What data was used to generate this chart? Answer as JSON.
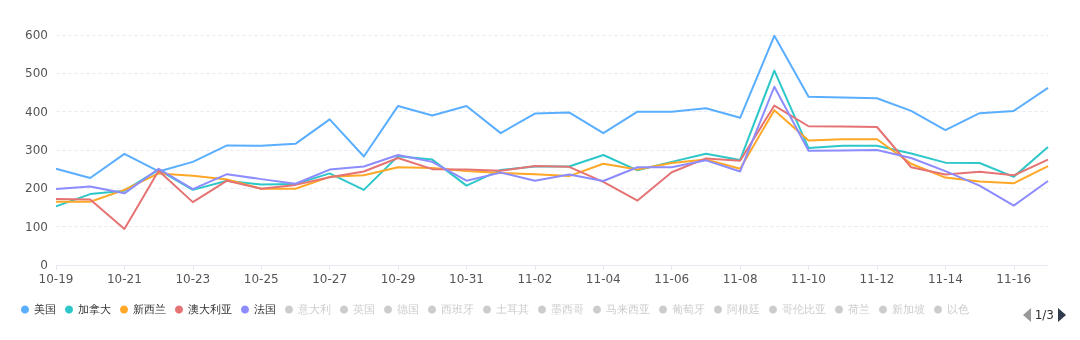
{
  "chart_data": {
    "type": "line",
    "categories": [
      "10-19",
      null,
      "10-21",
      null,
      "10-23",
      null,
      "10-25",
      null,
      "10-27",
      null,
      "10-29",
      null,
      "10-31",
      null,
      "11-02",
      null,
      "11-04",
      null,
      "11-06",
      null,
      "11-08",
      null,
      "11-10",
      null,
      "11-12",
      null,
      "11-14",
      null,
      "11-16",
      null
    ],
    "ylim": [
      0,
      600
    ],
    "yticks": [
      0,
      100,
      200,
      300,
      400,
      500,
      600
    ],
    "grid": "y",
    "legend": "bottom",
    "marker": "none",
    "line_style": "solid",
    "annotations": [
      "1/3"
    ],
    "series": [
      {
        "name": "美国",
        "color": "#5aaeff",
        "values": [
          251,
          227,
          290,
          244,
          269,
          312,
          311,
          316,
          380,
          283,
          415,
          390,
          415,
          344,
          395,
          398,
          344,
          400,
          400,
          409,
          384,
          598,
          439,
          437,
          435,
          402,
          352,
          396,
          402,
          462
        ]
      },
      {
        "name": "加拿大",
        "color": "#2ec7c9",
        "values": [
          153,
          185,
          194,
          248,
          196,
          220,
          210,
          211,
          239,
          196,
          284,
          275,
          207,
          248,
          257,
          257,
          287,
          247,
          269,
          290,
          274,
          507,
          305,
          311,
          311,
          291,
          267,
          266,
          230,
          308
        ]
      },
      {
        "name": "新西兰",
        "color": "#ffa726",
        "values": [
          165,
          165,
          196,
          239,
          233,
          223,
          199,
          199,
          230,
          234,
          255,
          253,
          245,
          240,
          237,
          232,
          264,
          249,
          266,
          275,
          251,
          404,
          325,
          328,
          328,
          264,
          228,
          218,
          213,
          258
        ]
      },
      {
        "name": "澳大利亚",
        "color": "#e57373",
        "values": [
          172,
          171,
          94,
          246,
          164,
          220,
          199,
          209,
          229,
          244,
          279,
          250,
          249,
          246,
          258,
          256,
          217,
          168,
          242,
          278,
          272,
          416,
          362,
          361,
          360,
          255,
          236,
          243,
          234,
          275
        ]
      },
      {
        "name": "法国",
        "color": "#8c8cff",
        "values": [
          198,
          205,
          187,
          251,
          198,
          237,
          224,
          212,
          249,
          257,
          287,
          269,
          220,
          241,
          220,
          236,
          219,
          255,
          255,
          273,
          244,
          465,
          298,
          299,
          300,
          279,
          245,
          207,
          155,
          219
        ]
      },
      {
        "name": "意大利",
        "values": [
          null,
          null,
          null,
          null,
          null,
          null,
          null,
          null,
          null,
          null,
          null,
          null,
          null,
          null,
          null,
          null,
          null,
          null,
          null,
          null,
          null,
          null,
          null,
          null,
          null,
          null,
          null,
          null,
          null,
          null
        ]
      },
      {
        "name": "英国",
        "values": [
          null,
          null,
          null,
          null,
          null,
          null,
          null,
          null,
          null,
          null,
          null,
          null,
          null,
          null,
          null,
          null,
          null,
          null,
          null,
          null,
          null,
          null,
          null,
          null,
          null,
          null,
          null,
          null,
          null,
          null
        ]
      },
      {
        "name": "德国",
        "values": [
          null,
          null,
          null,
          null,
          null,
          null,
          null,
          null,
          null,
          null,
          null,
          null,
          null,
          null,
          null,
          null,
          null,
          null,
          null,
          null,
          null,
          null,
          null,
          null,
          null,
          null,
          null,
          null,
          null,
          null
        ]
      },
      {
        "name": "西班牙",
        "values": [
          null,
          null,
          null,
          null,
          null,
          null,
          null,
          null,
          null,
          null,
          null,
          null,
          null,
          null,
          null,
          null,
          null,
          null,
          null,
          null,
          null,
          null,
          null,
          null,
          null,
          null,
          null,
          null,
          null,
          null
        ]
      },
      {
        "name": "土耳其",
        "values": [
          null,
          null,
          null,
          null,
          null,
          null,
          null,
          null,
          null,
          null,
          null,
          null,
          null,
          null,
          null,
          null,
          null,
          null,
          null,
          null,
          null,
          null,
          null,
          null,
          null,
          null,
          null,
          null,
          null,
          null
        ]
      },
      {
        "name": "墨西哥",
        "values": [
          null,
          null,
          null,
          null,
          null,
          null,
          null,
          null,
          null,
          null,
          null,
          null,
          null,
          null,
          null,
          null,
          null,
          null,
          null,
          null,
          null,
          null,
          null,
          null,
          null,
          null,
          null,
          null,
          null,
          null
        ]
      },
      {
        "name": "马来西亚",
        "values": [
          null,
          null,
          null,
          null,
          null,
          null,
          null,
          null,
          null,
          null,
          null,
          null,
          null,
          null,
          null,
          null,
          null,
          null,
          null,
          null,
          null,
          null,
          null,
          null,
          null,
          null,
          null,
          null,
          null,
          null
        ]
      },
      {
        "name": "葡萄牙",
        "values": [
          null,
          null,
          null,
          null,
          null,
          null,
          null,
          null,
          null,
          null,
          null,
          null,
          null,
          null,
          null,
          null,
          null,
          null,
          null,
          null,
          null,
          null,
          null,
          null,
          null,
          null,
          null,
          null,
          null,
          null
        ]
      },
      {
        "name": "阿根廷",
        "values": [
          null,
          null,
          null,
          null,
          null,
          null,
          null,
          null,
          null,
          null,
          null,
          null,
          null,
          null,
          null,
          null,
          null,
          null,
          null,
          null,
          null,
          null,
          null,
          null,
          null,
          null,
          null,
          null,
          null,
          null
        ]
      },
      {
        "name": "哥伦比亚",
        "values": [
          null,
          null,
          null,
          null,
          null,
          null,
          null,
          null,
          null,
          null,
          null,
          null,
          null,
          null,
          null,
          null,
          null,
          null,
          null,
          null,
          null,
          null,
          null,
          null,
          null,
          null,
          null,
          null,
          null,
          null
        ]
      },
      {
        "name": "荷兰",
        "values": [
          null,
          null,
          null,
          null,
          null,
          null,
          null,
          null,
          null,
          null,
          null,
          null,
          null,
          null,
          null,
          null,
          null,
          null,
          null,
          null,
          null,
          null,
          null,
          null,
          null,
          null,
          null,
          null,
          null,
          null
        ]
      },
      {
        "name": "新加坡",
        "values": [
          null,
          null,
          null,
          null,
          null,
          null,
          null,
          null,
          null,
          null,
          null,
          null,
          null,
          null,
          null,
          null,
          null,
          null,
          null,
          null,
          null,
          null,
          null,
          null,
          null,
          null,
          null,
          null,
          null,
          null
        ]
      },
      {
        "name": "以色",
        "values": [
          null,
          null,
          null,
          null,
          null,
          null,
          null,
          null,
          null,
          null,
          null,
          null,
          null,
          null,
          null,
          null,
          null,
          null,
          null,
          null,
          null,
          null,
          null,
          null,
          null,
          null,
          null,
          null,
          null,
          null
        ]
      }
    ]
  }
}
